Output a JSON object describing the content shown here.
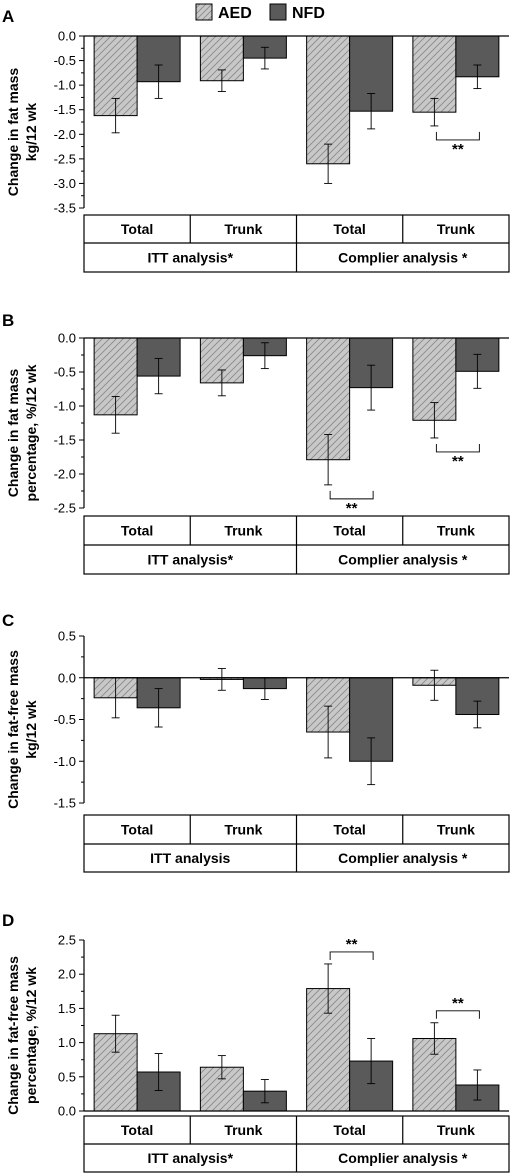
{
  "legend": {
    "items": [
      {
        "name": "AED",
        "color": "#c8c8c8",
        "pattern": "hatched"
      },
      {
        "name": "NFD",
        "color": "#5a5a5a",
        "pattern": "solid"
      }
    ]
  },
  "chart_data": [
    {
      "panel": "A",
      "type": "bar",
      "ylabel_lines": [
        "Change in fat mass",
        "kg/12 wk"
      ],
      "ylim": [
        -3.5,
        0.0
      ],
      "yticks": [
        "0.0",
        "-0.5",
        "-1.0",
        "-1.5",
        "-2.0",
        "-2.5",
        "-3.0",
        "-3.5"
      ],
      "categories": [
        "Total",
        "Trunk",
        "Total",
        "Trunk"
      ],
      "groups": [
        "ITT analysis*",
        "Complier analysis *"
      ],
      "series": [
        {
          "name": "AED",
          "values": [
            -1.62,
            -0.91,
            -2.6,
            -1.55
          ],
          "errors": [
            0.35,
            0.22,
            0.4,
            0.28
          ]
        },
        {
          "name": "NFD",
          "values": [
            -0.93,
            -0.45,
            -1.53,
            -0.83
          ],
          "errors": [
            0.34,
            0.22,
            0.36,
            0.24
          ]
        }
      ],
      "significance": [
        {
          "category_index": 3,
          "label": "**"
        }
      ]
    },
    {
      "panel": "B",
      "type": "bar",
      "ylabel_lines": [
        "Change in fat mass",
        "percentage, %/12 wk"
      ],
      "ylim": [
        -2.5,
        0.0
      ],
      "yticks": [
        "0.0",
        "-0.5",
        "-1.0",
        "-1.5",
        "-2.0",
        "-2.5"
      ],
      "categories": [
        "Total",
        "Trunk",
        "Total",
        "Trunk"
      ],
      "groups": [
        "ITT analysis*",
        "Complier analysis *"
      ],
      "series": [
        {
          "name": "AED",
          "values": [
            -1.13,
            -0.66,
            -1.79,
            -1.21
          ],
          "errors": [
            0.27,
            0.19,
            0.37,
            0.26
          ]
        },
        {
          "name": "NFD",
          "values": [
            -0.56,
            -0.26,
            -0.73,
            -0.49
          ],
          "errors": [
            0.26,
            0.19,
            0.33,
            0.25
          ]
        }
      ],
      "significance": [
        {
          "category_index": 2,
          "label": "**"
        },
        {
          "category_index": 3,
          "label": "**"
        }
      ]
    },
    {
      "panel": "C",
      "type": "bar",
      "ylabel_lines": [
        "Change in fat-free mass",
        "kg/12 wk"
      ],
      "ylim": [
        -1.5,
        0.5
      ],
      "yticks": [
        "0.5",
        "0.0",
        "-0.5",
        "-1.0",
        "-1.5"
      ],
      "categories": [
        "Total",
        "Trunk",
        "Total",
        "Trunk"
      ],
      "groups": [
        "ITT analysis",
        "Complier analysis *"
      ],
      "series": [
        {
          "name": "AED",
          "values": [
            -0.24,
            -0.02,
            -0.65,
            -0.09
          ],
          "errors": [
            0.24,
            0.13,
            0.31,
            0.18
          ]
        },
        {
          "name": "NFD",
          "values": [
            -0.36,
            -0.13,
            -1.0,
            -0.44
          ],
          "errors": [
            0.23,
            0.13,
            0.28,
            0.16
          ]
        }
      ],
      "significance": []
    },
    {
      "panel": "D",
      "type": "bar",
      "ylabel_lines": [
        "Change in fat-free mass",
        "percentage, %/12 wk"
      ],
      "ylim": [
        0.0,
        2.5
      ],
      "yticks": [
        "2.5",
        "2.0",
        "1.5",
        "1.0",
        "0.5",
        "0.0"
      ],
      "categories": [
        "Total",
        "Trunk",
        "Total",
        "Trunk"
      ],
      "groups": [
        "ITT analysis*",
        "Complier analysis *"
      ],
      "series": [
        {
          "name": "AED",
          "values": [
            1.13,
            0.64,
            1.79,
            1.06
          ],
          "errors": [
            0.27,
            0.17,
            0.36,
            0.23
          ]
        },
        {
          "name": "NFD",
          "values": [
            0.57,
            0.29,
            0.73,
            0.38
          ],
          "errors": [
            0.27,
            0.17,
            0.33,
            0.22
          ]
        }
      ],
      "significance": [
        {
          "category_index": 2,
          "label": "**"
        },
        {
          "category_index": 3,
          "label": "**"
        }
      ]
    }
  ]
}
